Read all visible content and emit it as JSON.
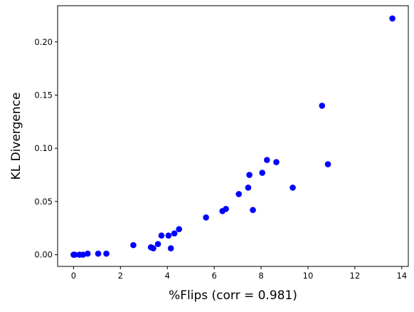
{
  "chart_data": {
    "type": "scatter",
    "xlabel": "%Flips (corr = 0.981)",
    "ylabel": "KL Divergence",
    "xlim": [
      -0.68,
      14.28
    ],
    "ylim": [
      -0.011,
      0.234
    ],
    "xticks": [
      0,
      2,
      4,
      6,
      8,
      10,
      12,
      14
    ],
    "xtick_labels": [
      "0",
      "2",
      "4",
      "6",
      "8",
      "10",
      "12",
      "14"
    ],
    "yticks": [
      0.0,
      0.05,
      0.1,
      0.15,
      0.2
    ],
    "ytick_labels": [
      "0.00",
      "0.05",
      "0.10",
      "0.15",
      "0.20"
    ],
    "grid": false,
    "marker_color": "#0000ff",
    "series": [
      {
        "points": [
          {
            "x": 0.0,
            "y": 0.0
          },
          {
            "x": 0.05,
            "y": 0.0
          },
          {
            "x": 0.25,
            "y": 0.0
          },
          {
            "x": 0.4,
            "y": 0.0
          },
          {
            "x": 0.6,
            "y": 0.001
          },
          {
            "x": 1.05,
            "y": 0.001
          },
          {
            "x": 1.4,
            "y": 0.001
          },
          {
            "x": 2.55,
            "y": 0.009
          },
          {
            "x": 3.3,
            "y": 0.007
          },
          {
            "x": 3.4,
            "y": 0.006
          },
          {
            "x": 3.6,
            "y": 0.01
          },
          {
            "x": 3.75,
            "y": 0.018
          },
          {
            "x": 4.05,
            "y": 0.018
          },
          {
            "x": 4.15,
            "y": 0.006
          },
          {
            "x": 4.3,
            "y": 0.02
          },
          {
            "x": 4.5,
            "y": 0.024
          },
          {
            "x": 5.65,
            "y": 0.035
          },
          {
            "x": 6.35,
            "y": 0.041
          },
          {
            "x": 6.5,
            "y": 0.043
          },
          {
            "x": 7.05,
            "y": 0.057
          },
          {
            "x": 7.45,
            "y": 0.063
          },
          {
            "x": 7.5,
            "y": 0.075
          },
          {
            "x": 7.65,
            "y": 0.042
          },
          {
            "x": 8.05,
            "y": 0.077
          },
          {
            "x": 8.25,
            "y": 0.089
          },
          {
            "x": 8.65,
            "y": 0.087
          },
          {
            "x": 9.35,
            "y": 0.063
          },
          {
            "x": 10.6,
            "y": 0.14
          },
          {
            "x": 10.85,
            "y": 0.085
          },
          {
            "x": 13.6,
            "y": 0.222
          }
        ]
      }
    ]
  }
}
